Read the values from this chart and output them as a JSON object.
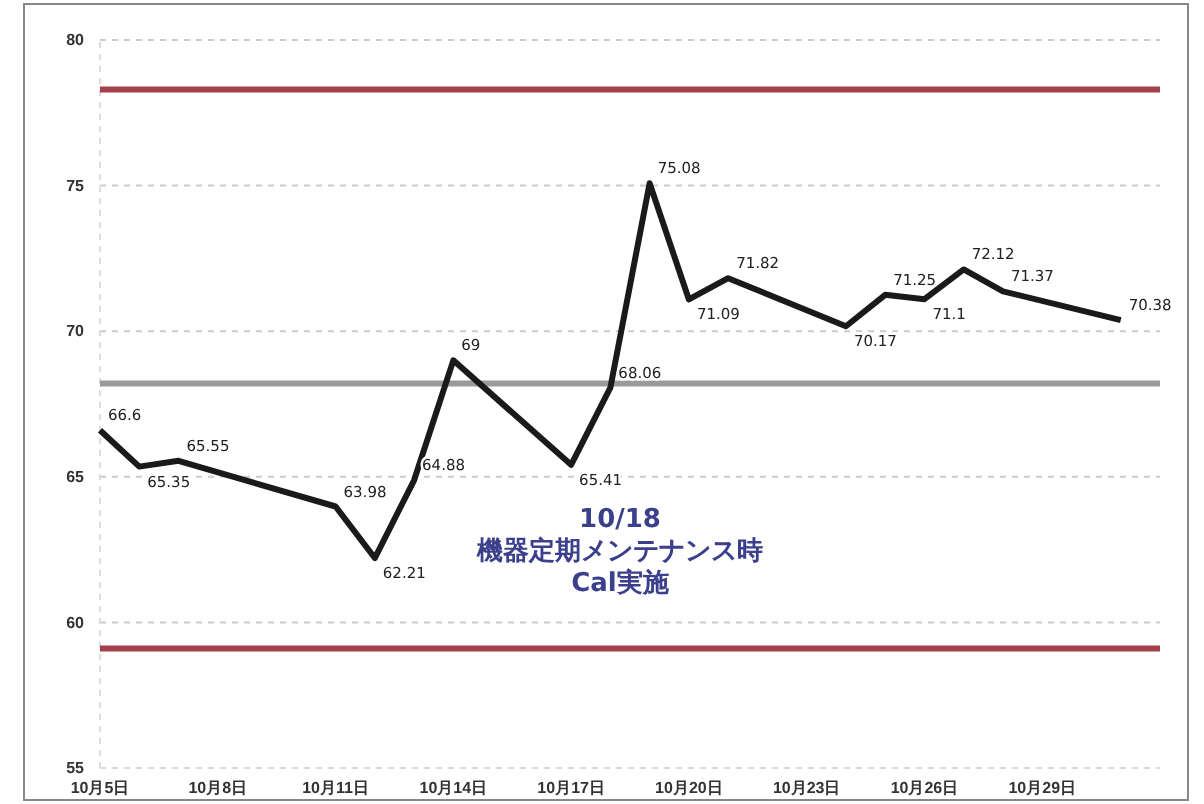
{
  "chart_data": {
    "type": "line",
    "x": [
      "--10-05",
      "--10-06",
      "--10-07",
      "--10-11",
      "--10-12",
      "--10-13",
      "--10-14",
      "--10-17",
      "--10-18",
      "--10-19",
      "--10-20",
      "--10-21",
      "--10-24",
      "--10-25",
      "--10-26",
      "--10-27",
      "--10-28",
      "--10-31"
    ],
    "series": [
      {
        "color": "#1a1a1a",
        "values": [
          66.6,
          65.35,
          65.55,
          63.98,
          62.21,
          64.88,
          69,
          65.41,
          68.06,
          75.08,
          71.09,
          71.82,
          70.17,
          71.25,
          71.1,
          72.12,
          71.37,
          70.38
        ]
      }
    ],
    "data_labels": true,
    "xlim": [
      "--10-05",
      "--11-01"
    ],
    "xticks": [
      {
        "value": "--10-05",
        "label": "10月5日"
      },
      {
        "value": "--10-08",
        "label": "10月8日"
      },
      {
        "value": "--10-11",
        "label": "10月11日"
      },
      {
        "value": "--10-14",
        "label": "10月14日"
      },
      {
        "value": "--10-17",
        "label": "10月17日"
      },
      {
        "value": "--10-20",
        "label": "10月20日"
      },
      {
        "value": "--10-23",
        "label": "10月23日"
      },
      {
        "value": "--10-26",
        "label": "10月26日"
      },
      {
        "value": "--10-29",
        "label": "10月29日"
      }
    ],
    "ylim": [
      55,
      80
    ],
    "yticks": [
      55,
      60,
      65,
      70,
      75,
      80
    ],
    "grid": "y",
    "marker": "none",
    "line_style": "solid",
    "ref_lines": [
      {
        "axis": "y",
        "value": 78.3,
        "color": "#a3404a"
      },
      {
        "axis": "y",
        "value": 68.2,
        "color": "#9a9a9a"
      },
      {
        "axis": "y",
        "value": 59.1,
        "color": "#a3404a"
      }
    ],
    "annotations": [
      "10/18\n機器定期メンテナンス時\nCal実施"
    ]
  }
}
